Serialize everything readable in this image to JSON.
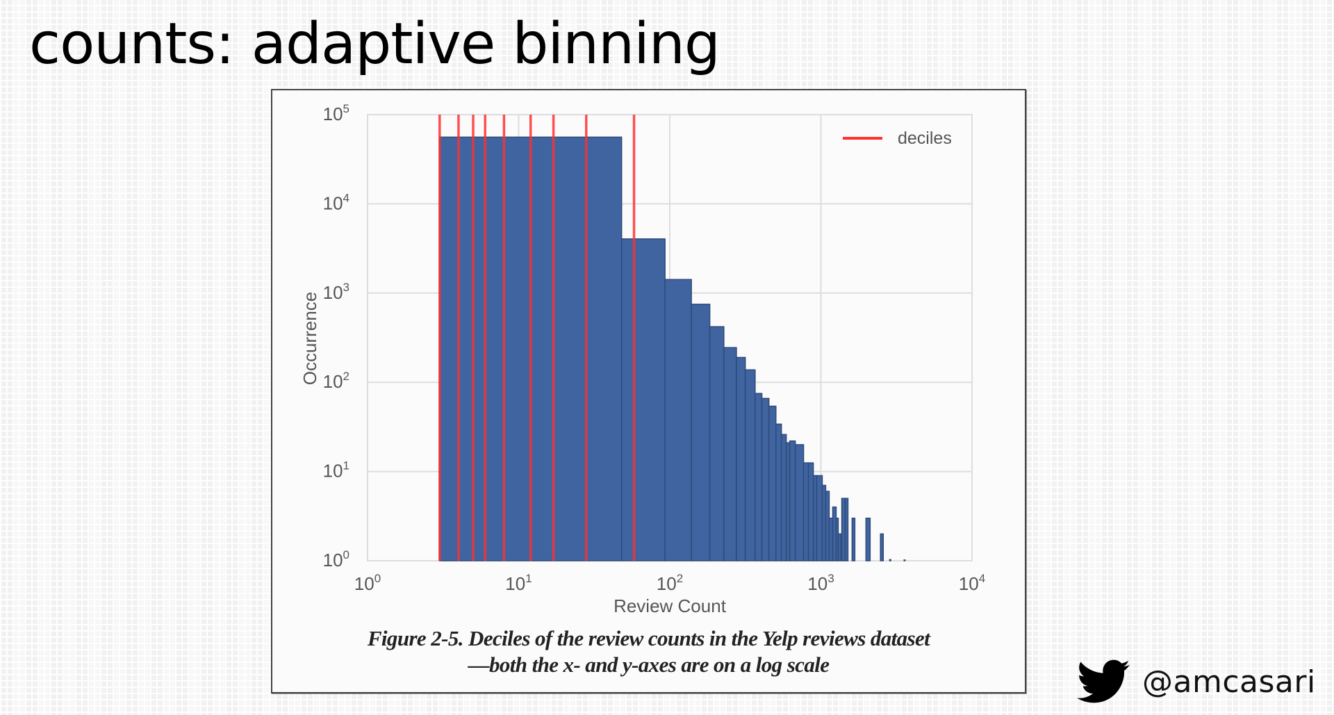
{
  "slide": {
    "title": "counts: adaptive binning",
    "caption_line1": "Figure 2-5. Deciles of the review counts in the Yelp reviews dataset",
    "caption_line2": "—both the x- and y-axes are on a log scale",
    "twitter_icon": "twitter-bird-icon",
    "twitter_handle": "@amcasari"
  },
  "colors": {
    "bar_fill": "#4064a0",
    "bar_edge": "#2e4a7a",
    "decile_line": "#ff3030",
    "grid": "#dddddd",
    "axis_text": "#555555",
    "plot_bg": "#fbfbfb"
  },
  "chart_data": {
    "type": "bar",
    "subtype": "histogram",
    "title": "",
    "xlabel": "Review Count",
    "ylabel": "Occurrence",
    "xscale": "log",
    "yscale": "log",
    "xlim": [
      1,
      10000
    ],
    "ylim": [
      1,
      100000
    ],
    "grid": true,
    "xticks": [
      {
        "base": "10",
        "exp": "0"
      },
      {
        "base": "10",
        "exp": "1"
      },
      {
        "base": "10",
        "exp": "2"
      },
      {
        "base": "10",
        "exp": "3"
      },
      {
        "base": "10",
        "exp": "4"
      }
    ],
    "yticks": [
      {
        "base": "10",
        "exp": "0"
      },
      {
        "base": "10",
        "exp": "1"
      },
      {
        "base": "10",
        "exp": "2"
      },
      {
        "base": "10",
        "exp": "3"
      },
      {
        "base": "10",
        "exp": "4"
      },
      {
        "base": "10",
        "exp": "5"
      }
    ],
    "legend": {
      "position": "upper right",
      "entries": [
        {
          "label": "deciles",
          "color": "#ff3030",
          "style": "line"
        }
      ]
    },
    "deciles": [
      3,
      4,
      5,
      6,
      8,
      12,
      17,
      28,
      58
    ],
    "bins": [
      {
        "x0": 3,
        "x1": 48,
        "count": 56000
      },
      {
        "x0": 48,
        "x1": 93,
        "count": 4050
      },
      {
        "x0": 93,
        "x1": 139,
        "count": 1420
      },
      {
        "x0": 139,
        "x1": 184,
        "count": 750
      },
      {
        "x0": 184,
        "x1": 228,
        "count": 420
      },
      {
        "x0": 228,
        "x1": 276,
        "count": 245
      },
      {
        "x0": 276,
        "x1": 316,
        "count": 190
      },
      {
        "x0": 316,
        "x1": 367,
        "count": 138
      },
      {
        "x0": 367,
        "x1": 407,
        "count": 75
      },
      {
        "x0": 407,
        "x1": 453,
        "count": 66
      },
      {
        "x0": 453,
        "x1": 504,
        "count": 54
      },
      {
        "x0": 504,
        "x1": 548,
        "count": 34
      },
      {
        "x0": 548,
        "x1": 590,
        "count": 26
      },
      {
        "x0": 590,
        "x1": 622,
        "count": 21
      },
      {
        "x0": 622,
        "x1": 677,
        "count": 22
      },
      {
        "x0": 677,
        "x1": 768,
        "count": 20
      },
      {
        "x0": 768,
        "x1": 827,
        "count": 12.5
      },
      {
        "x0": 827,
        "x1": 891,
        "count": 12.5
      },
      {
        "x0": 891,
        "x1": 938,
        "count": 9
      },
      {
        "x0": 938,
        "x1": 1021,
        "count": 9
      },
      {
        "x0": 1021,
        "x1": 1076,
        "count": 7
      },
      {
        "x0": 1076,
        "x1": 1135,
        "count": 6
      },
      {
        "x0": 1135,
        "x1": 1197,
        "count": 3
      },
      {
        "x0": 1197,
        "x1": 1262,
        "count": 4
      },
      {
        "x0": 1262,
        "x1": 1303,
        "count": 3
      },
      {
        "x0": 1303,
        "x1": 1359,
        "count": 2
      },
      {
        "x0": 1374,
        "x1": 1448,
        "count": 5
      },
      {
        "x0": 1448,
        "x1": 1511,
        "count": 5
      },
      {
        "x0": 1608,
        "x1": 1678,
        "count": 3
      },
      {
        "x0": 1987,
        "x1": 2117,
        "count": 3
      },
      {
        "x0": 2478,
        "x1": 2587,
        "count": 2
      },
      {
        "x0": 2850,
        "x1": 2900,
        "count": 1.03
      },
      {
        "x0": 3550,
        "x1": 3600,
        "count": 1.02
      }
    ]
  }
}
